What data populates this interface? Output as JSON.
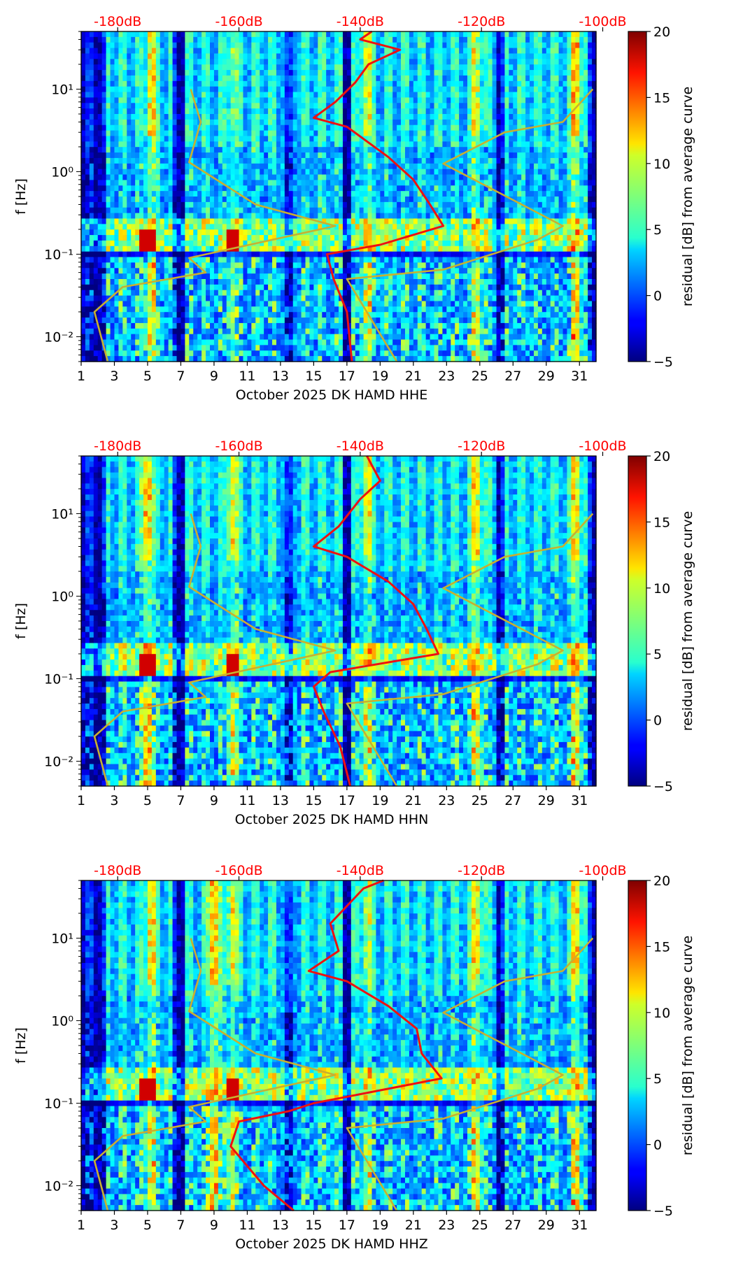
{
  "chart_data": [
    {
      "type": "heatmap",
      "title": "",
      "xlabel": "October 2025 DK HAMD  HHE",
      "ylabel": "f [Hz]",
      "component": "HHE",
      "xlim": [
        1,
        32
      ],
      "ylim": [
        0.005,
        50
      ],
      "yscale": "log",
      "xticks": [
        1,
        3,
        5,
        7,
        9,
        11,
        13,
        15,
        17,
        19,
        21,
        23,
        25,
        27,
        29,
        31
      ],
      "xtick_labels": [
        "1",
        "3",
        "5",
        "7",
        "9",
        "11",
        "13",
        "15",
        "17",
        "19",
        "21",
        "23",
        "25",
        "27",
        "29",
        "31"
      ],
      "yticks": [
        0.01,
        0.1,
        1,
        10
      ],
      "ytick_labels": [
        "10⁻²",
        "10⁻¹",
        "10⁰",
        "10¹"
      ],
      "colorbar": {
        "label": "residual [dB] from average curve",
        "range": [
          -5,
          20
        ],
        "ticks": [
          -5,
          0,
          5,
          10,
          15,
          20
        ],
        "tick_labels": [
          "−5",
          "0",
          "5",
          "10",
          "15",
          "20"
        ]
      },
      "top_axis": {
        "dB_ticks": [
          -180,
          -160,
          -140,
          -120,
          -100
        ],
        "labels": [
          "-180dB",
          "-160dB",
          "-140dB",
          "-120dB",
          "-100dB"
        ]
      },
      "hot_columns": [
        {
          "day": 5.2,
          "level": 12
        },
        {
          "day": 10.1,
          "level": 6
        },
        {
          "day": 18.2,
          "level": 10
        },
        {
          "day": 24.8,
          "level": 10
        },
        {
          "day": 30.8,
          "level": 14
        }
      ],
      "series": [
        {
          "name": "mean PSD (red)",
          "color": "#ee1111",
          "points": [
            [
              17.3,
              0.005
            ],
            [
              17.0,
              0.02
            ],
            [
              16.2,
              0.05
            ],
            [
              15.8,
              0.1
            ],
            [
              19,
              0.13
            ],
            [
              22.8,
              0.22
            ],
            [
              22,
              0.4
            ],
            [
              21,
              0.8
            ],
            [
              19.5,
              1.5
            ],
            [
              17,
              3.5
            ],
            [
              15,
              4.5
            ],
            [
              16.3,
              7
            ],
            [
              17.5,
              12
            ],
            [
              18.3,
              20
            ],
            [
              20.2,
              30
            ],
            [
              17.8,
              40
            ],
            [
              18.5,
              50
            ]
          ]
        },
        {
          "name": "noise model (gold)",
          "color": "#c8b030",
          "points": [
            [
              2.6,
              0.005
            ],
            [
              2.2,
              0.01
            ],
            [
              1.8,
              0.02
            ],
            [
              3.5,
              0.04
            ],
            [
              8.5,
              0.06
            ],
            [
              7.5,
              0.09
            ],
            [
              16.3,
              0.22
            ],
            [
              11.5,
              0.4
            ],
            [
              7.5,
              1.3
            ],
            [
              8.2,
              4
            ],
            [
              7.6,
              10
            ]
          ]
        },
        {
          "name": "noise model (gold, right)",
          "color": "#c8b030",
          "points": [
            [
              20,
              0.005
            ],
            [
              17,
              0.05
            ],
            [
              22.8,
              0.065
            ],
            [
              28.5,
              0.15
            ],
            [
              30,
              0.22
            ],
            [
              22.8,
              1.25
            ],
            [
              26.5,
              3
            ],
            [
              30,
              4
            ],
            [
              31.8,
              10
            ]
          ]
        }
      ]
    },
    {
      "type": "heatmap",
      "title": "",
      "xlabel": "October 2025 DK HAMD  HHN",
      "ylabel": "f [Hz]",
      "component": "HHN",
      "xlim": [
        1,
        32
      ],
      "ylim": [
        0.005,
        50
      ],
      "yscale": "log",
      "xticks": [
        1,
        3,
        5,
        7,
        9,
        11,
        13,
        15,
        17,
        19,
        21,
        23,
        25,
        27,
        29,
        31
      ],
      "xtick_labels": [
        "1",
        "3",
        "5",
        "7",
        "9",
        "11",
        "13",
        "15",
        "17",
        "19",
        "21",
        "23",
        "25",
        "27",
        "29",
        "31"
      ],
      "yticks": [
        0.01,
        0.1,
        1,
        10
      ],
      "ytick_labels": [
        "10⁻²",
        "10⁻¹",
        "10⁰",
        "10¹"
      ],
      "colorbar": {
        "label": "residual [dB] from average curve",
        "range": [
          -5,
          20
        ],
        "ticks": [
          -5,
          0,
          5,
          10,
          15,
          20
        ],
        "tick_labels": [
          "−5",
          "0",
          "5",
          "10",
          "15",
          "20"
        ]
      },
      "top_axis": {
        "dB_ticks": [
          -180,
          -160,
          -140,
          -120,
          -100
        ],
        "labels": [
          "-180dB",
          "-160dB",
          "-140dB",
          "-120dB",
          "-100dB"
        ]
      },
      "hot_columns": [
        {
          "day": 5.0,
          "level": 15
        },
        {
          "day": 10.1,
          "level": 10
        },
        {
          "day": 18.2,
          "level": 10
        },
        {
          "day": 24.8,
          "level": 12
        },
        {
          "day": 30.8,
          "level": 12
        }
      ],
      "series": [
        {
          "name": "mean PSD (red)",
          "color": "#ee1111",
          "points": [
            [
              17.2,
              0.005
            ],
            [
              16.6,
              0.015
            ],
            [
              15.6,
              0.04
            ],
            [
              15,
              0.08
            ],
            [
              16,
              0.12
            ],
            [
              22.5,
              0.2
            ],
            [
              21.8,
              0.4
            ],
            [
              21,
              0.8
            ],
            [
              19.5,
              1.5
            ],
            [
              17,
              3
            ],
            [
              15,
              4
            ],
            [
              16.5,
              7
            ],
            [
              17.8,
              15
            ],
            [
              19,
              25
            ],
            [
              18.2,
              50
            ]
          ]
        },
        {
          "name": "noise model (gold)",
          "color": "#c8b030",
          "points": [
            [
              2.6,
              0.005
            ],
            [
              2.2,
              0.01
            ],
            [
              1.8,
              0.02
            ],
            [
              3.5,
              0.04
            ],
            [
              8.5,
              0.06
            ],
            [
              7.5,
              0.09
            ],
            [
              16.3,
              0.22
            ],
            [
              11.5,
              0.4
            ],
            [
              7.5,
              1.3
            ],
            [
              8.2,
              4
            ],
            [
              7.6,
              10
            ]
          ]
        },
        {
          "name": "noise model (gold, right)",
          "color": "#c8b030",
          "points": [
            [
              20,
              0.005
            ],
            [
              17,
              0.05
            ],
            [
              22.8,
              0.065
            ],
            [
              28.5,
              0.15
            ],
            [
              30,
              0.22
            ],
            [
              22.8,
              1.25
            ],
            [
              26.5,
              3
            ],
            [
              30,
              4
            ],
            [
              31.8,
              10
            ]
          ]
        }
      ]
    },
    {
      "type": "heatmap",
      "title": "",
      "xlabel": "October 2025 DK HAMD  HHZ",
      "ylabel": "f [Hz]",
      "component": "HHZ",
      "xlim": [
        1,
        32
      ],
      "ylim": [
        0.005,
        50
      ],
      "yscale": "log",
      "xticks": [
        1,
        3,
        5,
        7,
        9,
        11,
        13,
        15,
        17,
        19,
        21,
        23,
        25,
        27,
        29,
        31
      ],
      "xtick_labels": [
        "1",
        "3",
        "5",
        "7",
        "9",
        "11",
        "13",
        "15",
        "17",
        "19",
        "21",
        "23",
        "25",
        "27",
        "29",
        "31"
      ],
      "yticks": [
        0.01,
        0.1,
        1,
        10
      ],
      "ytick_labels": [
        "10⁻²",
        "10⁻¹",
        "10⁰",
        "10¹"
      ],
      "colorbar": {
        "label": "residual [dB] from average curve",
        "range": [
          -5,
          20
        ],
        "ticks": [
          -5,
          0,
          5,
          10,
          15,
          20
        ],
        "tick_labels": [
          "−5",
          "0",
          "5",
          "10",
          "15",
          "20"
        ]
      },
      "top_axis": {
        "dB_ticks": [
          -180,
          -160,
          -140,
          -120,
          -100
        ],
        "labels": [
          "-180dB",
          "-160dB",
          "-140dB",
          "-120dB",
          "-100dB"
        ]
      },
      "hot_columns": [
        {
          "day": 5.2,
          "level": 12
        },
        {
          "day": 9.0,
          "level": 16
        },
        {
          "day": 10.1,
          "level": 10
        },
        {
          "day": 18.2,
          "level": 8
        },
        {
          "day": 24.8,
          "level": 12
        },
        {
          "day": 30.8,
          "level": 12
        }
      ],
      "series": [
        {
          "name": "mean PSD (red)",
          "color": "#ee1111",
          "points": [
            [
              13.8,
              0.005
            ],
            [
              12,
              0.01
            ],
            [
              10,
              0.03
            ],
            [
              10.5,
              0.06
            ],
            [
              13.5,
              0.08
            ],
            [
              15,
              0.1
            ],
            [
              22.7,
              0.2
            ],
            [
              21.5,
              0.4
            ],
            [
              21.2,
              0.8
            ],
            [
              19.5,
              1.5
            ],
            [
              17,
              3
            ],
            [
              14.7,
              4
            ],
            [
              16.5,
              7
            ],
            [
              16,
              15
            ],
            [
              18,
              40
            ],
            [
              19.2,
              50
            ]
          ]
        },
        {
          "name": "noise model (gold)",
          "color": "#c8b030",
          "points": [
            [
              2.6,
              0.005
            ],
            [
              2.2,
              0.01
            ],
            [
              1.8,
              0.02
            ],
            [
              3.5,
              0.04
            ],
            [
              8.5,
              0.06
            ],
            [
              7.5,
              0.09
            ],
            [
              16.3,
              0.22
            ],
            [
              11.5,
              0.4
            ],
            [
              7.5,
              1.3
            ],
            [
              8.2,
              4
            ],
            [
              7.6,
              10
            ]
          ]
        },
        {
          "name": "noise model (gold, right)",
          "color": "#c8b030",
          "points": [
            [
              20,
              0.005
            ],
            [
              17,
              0.05
            ],
            [
              22.8,
              0.065
            ],
            [
              28.5,
              0.15
            ],
            [
              30,
              0.22
            ],
            [
              22.8,
              1.25
            ],
            [
              26.5,
              3
            ],
            [
              30,
              4
            ],
            [
              31.8,
              10
            ]
          ]
        }
      ]
    }
  ]
}
